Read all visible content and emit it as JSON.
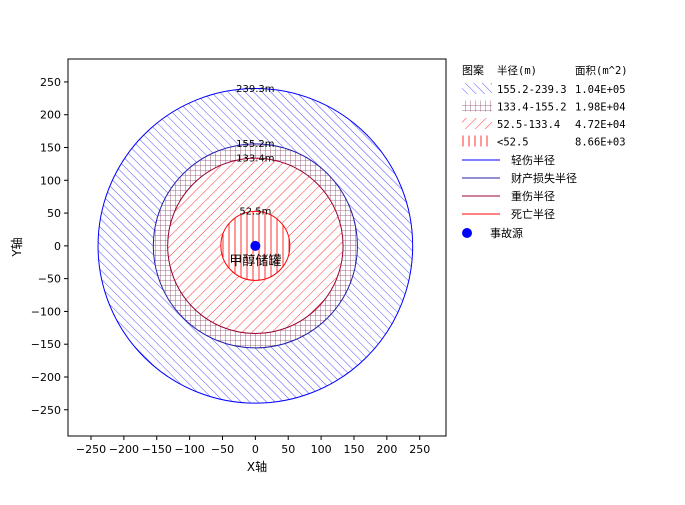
{
  "chart_data": {
    "type": "area",
    "xlabel": "X轴",
    "ylabel": "Y轴",
    "xlim": [
      -285,
      290
    ],
    "ylim": [
      -290,
      285
    ],
    "x_ticks": [
      -250,
      -200,
      -150,
      -100,
      -50,
      0,
      50,
      100,
      150,
      200,
      250
    ],
    "y_ticks": [
      -250,
      -200,
      -150,
      -100,
      -50,
      0,
      50,
      100,
      150,
      200,
      250
    ],
    "grid": false,
    "source": {
      "x": 0,
      "y": 0,
      "label": "甲醇储罐"
    },
    "radii": [
      {
        "name": "轻伤半径",
        "radius": 239.3,
        "label": "239.3m",
        "color": "#0000ff"
      },
      {
        "name": "财产损失半径",
        "radius": 155.2,
        "label": "155.2m",
        "color": "#2222aa"
      },
      {
        "name": "重伤半径",
        "radius": 133.4,
        "label": "133.4m",
        "color": "#990033"
      },
      {
        "name": "死亡半径",
        "radius": 52.5,
        "label": "52.5m",
        "color": "#ff0000"
      }
    ],
    "zones": [
      {
        "range": "155.2-239.3",
        "area": "1.04E+05",
        "pattern": "diag-blue",
        "color": "#5555ff"
      },
      {
        "range": "133.4-155.2",
        "area": "1.98E+04",
        "pattern": "grid-maroon",
        "color": "#884466"
      },
      {
        "range": "52.5-133.4",
        "area": "4.72E+04",
        "pattern": "diag-red",
        "color": "#ff3333"
      },
      {
        "range": "<52.5",
        "area": "8.66E+03",
        "pattern": "vert-red",
        "color": "#ff3333"
      }
    ],
    "legend": {
      "position": "right",
      "header_pattern": "图案",
      "header_radius": "半径(m)",
      "header_area": "面积(m^2)",
      "source_label": "事故源"
    }
  }
}
